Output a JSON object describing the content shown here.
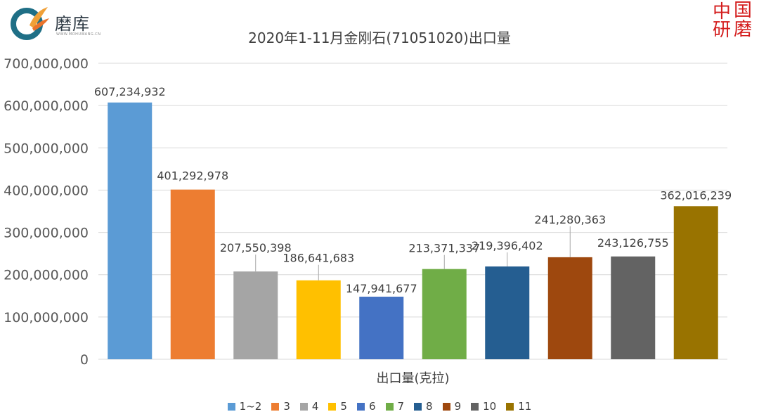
{
  "brand": {
    "name": "磨库",
    "sub": "WWW.MOHUWANG.CN",
    "seal": [
      "中",
      "国",
      "研",
      "磨"
    ]
  },
  "chart_data": {
    "type": "bar",
    "title": "2020年1-11月金刚石(71051020)出口量",
    "xlabel": "出口量(克拉)",
    "ylabel": "",
    "ylim": [
      0,
      700000000
    ],
    "yticks": [
      0,
      100000000,
      200000000,
      300000000,
      400000000,
      500000000,
      600000000,
      700000000
    ],
    "ytick_labels": [
      "0",
      "100,000,000",
      "200,000,000",
      "300,000,000",
      "400,000,000",
      "500,000,000",
      "600,000,000",
      "700,000,000"
    ],
    "grid": true,
    "legend_position": "bottom",
    "series": [
      {
        "name": "1~2",
        "value": 607234932,
        "label": "607,234,932",
        "color": "#5b9bd5"
      },
      {
        "name": "3",
        "value": 401292978,
        "label": "401,292,978",
        "color": "#ed7d31"
      },
      {
        "name": "4",
        "value": 207550398,
        "label": "207,550,398",
        "color": "#a5a5a5"
      },
      {
        "name": "5",
        "value": 186641683,
        "label": "186,641,683",
        "color": "#ffc000"
      },
      {
        "name": "6",
        "value": 147941677,
        "label": "147,941,677",
        "color": "#4472c4"
      },
      {
        "name": "7",
        "value": 213371337,
        "label": "213,371,337",
        "color": "#70ad47"
      },
      {
        "name": "8",
        "value": 219396402,
        "label": "219,396,402",
        "color": "#255e91"
      },
      {
        "name": "9",
        "value": 241280363,
        "label": "241,280,363",
        "color": "#9e480e"
      },
      {
        "name": "10",
        "value": 243126755,
        "label": "243,126,755",
        "color": "#636363"
      },
      {
        "name": "11",
        "value": 362016239,
        "label": "362,016,239",
        "color": "#997300"
      }
    ]
  }
}
